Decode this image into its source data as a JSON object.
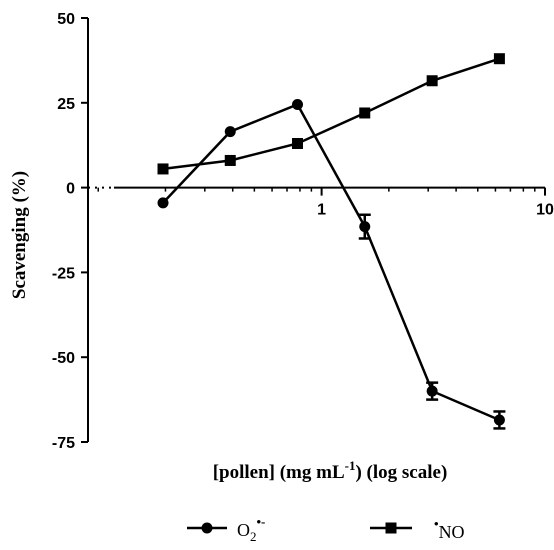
{
  "chart_data": {
    "type": "line",
    "xlabel": "[pollen] (mg mL",
    "xlabel_sup": "-1",
    "xlabel_suffix": ") (log scale)",
    "ylabel": "Scavenging (%)",
    "xscale": "log",
    "xlim": [
      0.09,
      10
    ],
    "ylim": [
      -75,
      50
    ],
    "xticks": [
      {
        "value": 1,
        "label": "1"
      },
      {
        "value": 10,
        "label": "10"
      }
    ],
    "yticks": [
      {
        "value": 50,
        "label": "50"
      },
      {
        "value": 25,
        "label": "25"
      },
      {
        "value": 0,
        "label": "0"
      },
      {
        "value": -25,
        "label": "-25"
      },
      {
        "value": -50,
        "label": "-50"
      },
      {
        "value": -75,
        "label": "-75"
      }
    ],
    "legend_position": "bottom",
    "series": [
      {
        "name": "O2•-",
        "name_main": "O",
        "name_sub": "2",
        "name_sup": "•-",
        "marker": "circle",
        "points": [
          {
            "x": 0.195,
            "y": -4.5,
            "err": 0
          },
          {
            "x": 0.39,
            "y": 16.5,
            "err": 0
          },
          {
            "x": 0.78,
            "y": 24.5,
            "err": 0
          },
          {
            "x": 1.56,
            "y": -11.5,
            "err": 3.5
          },
          {
            "x": 3.125,
            "y": -60,
            "err": 2.5
          },
          {
            "x": 6.25,
            "y": -68.5,
            "err": 2.5
          }
        ]
      },
      {
        "name": "•NO",
        "name_main": "NO",
        "name_sup": "•",
        "marker": "square",
        "points": [
          {
            "x": 0.195,
            "y": 5.5,
            "err": 0
          },
          {
            "x": 0.39,
            "y": 8,
            "err": 0
          },
          {
            "x": 0.78,
            "y": 13,
            "err": 0
          },
          {
            "x": 1.56,
            "y": 22,
            "err": 0
          },
          {
            "x": 3.125,
            "y": 31.5,
            "err": 0
          },
          {
            "x": 6.25,
            "y": 38,
            "err": 0
          }
        ]
      }
    ]
  }
}
